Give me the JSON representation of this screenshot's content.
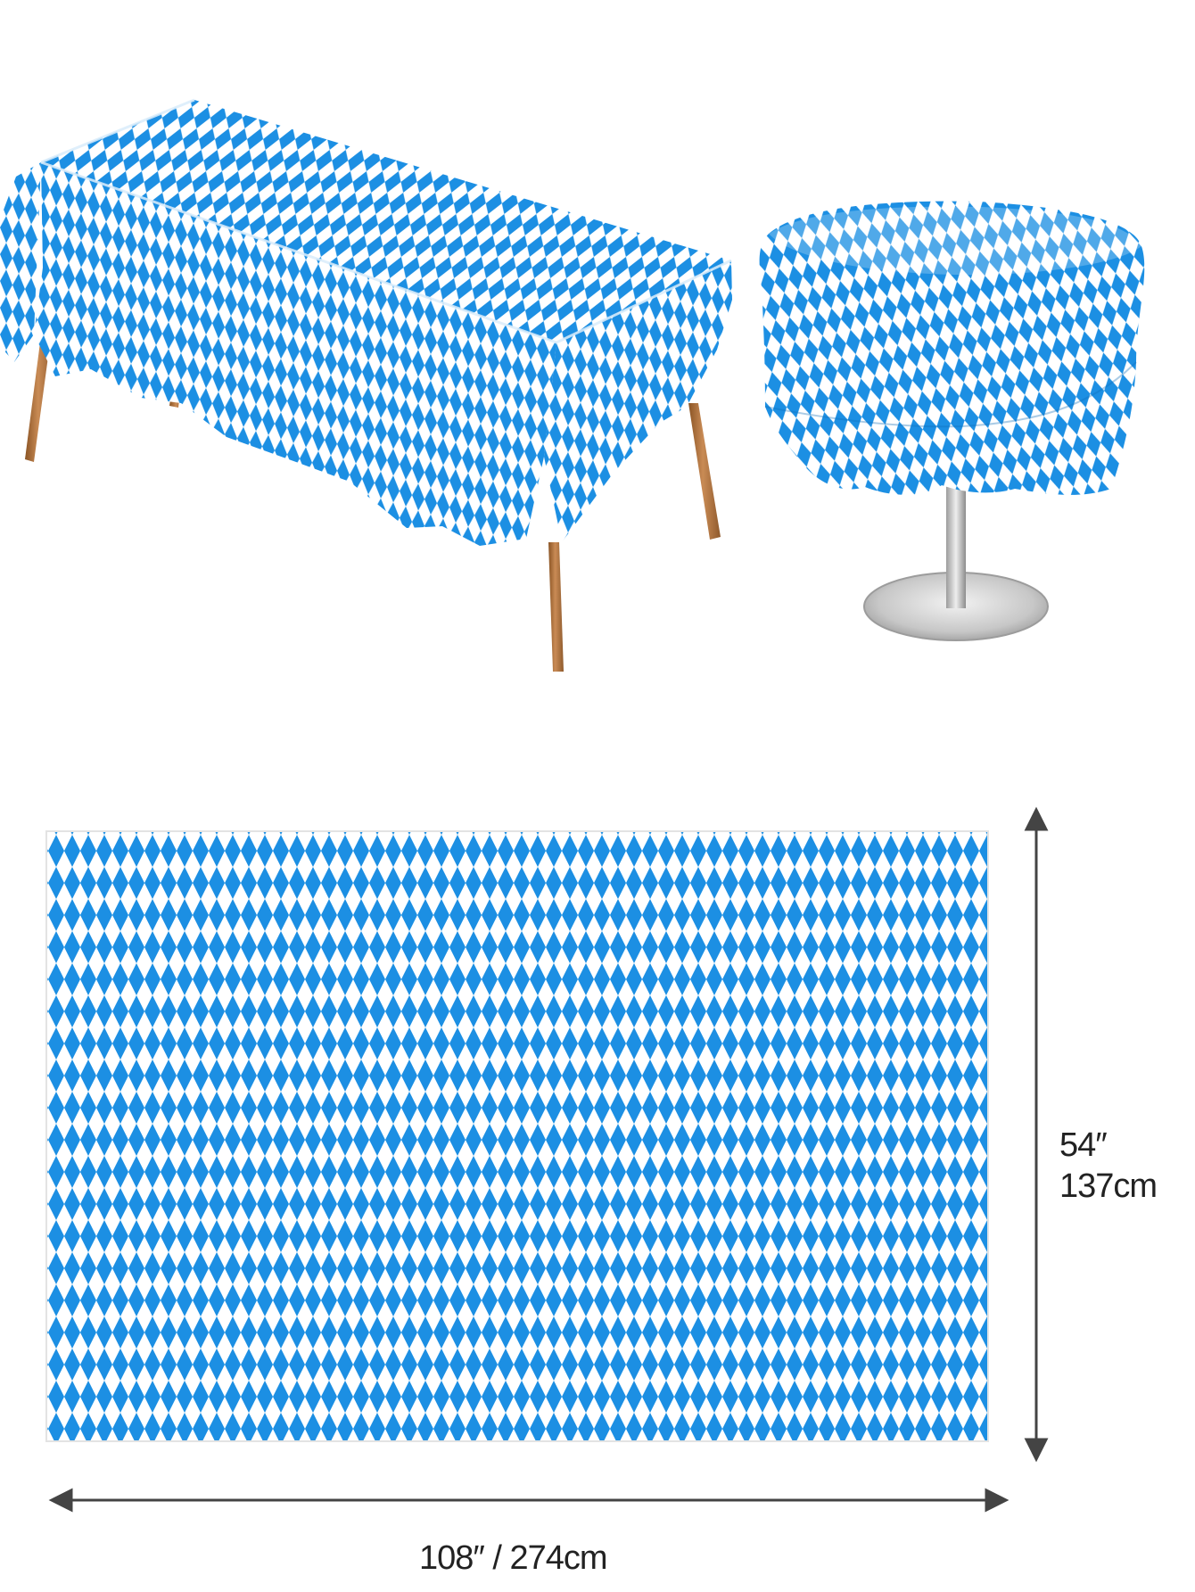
{
  "colors": {
    "pattern_blue": "#1c8fe3",
    "pattern_white": "#ffffff",
    "wood": "#b37845",
    "metal": "#c8c8c8",
    "dimension_line": "#444444",
    "text": "#222222"
  },
  "illustrations": {
    "rectangular_table": "rectangular table with blue and white diamond tablecloth",
    "round_table": "round pedestal table with blue and white diamond tablecloth",
    "flat_cloth": "flat blue and white diamond pattern tablecloth"
  },
  "dimensions": {
    "height_inches": "54″",
    "height_cm": "137cm",
    "width_label": "108″ / 274cm"
  }
}
